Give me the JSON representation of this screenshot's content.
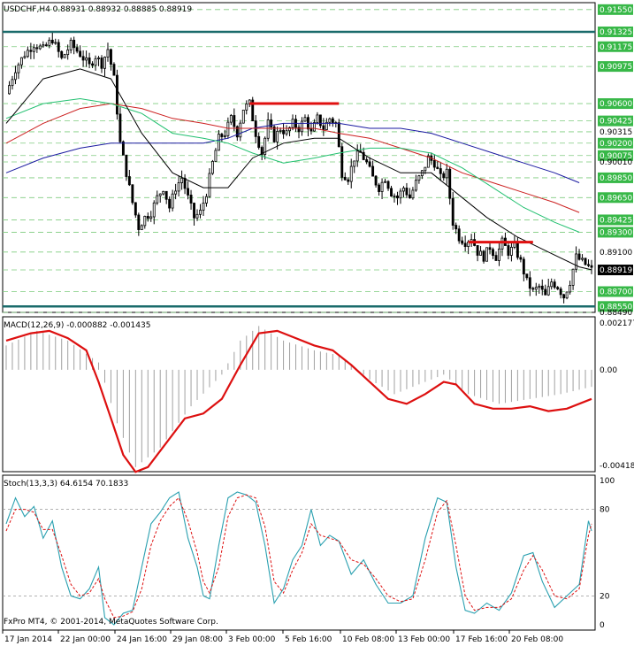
{
  "colors": {
    "background": "#ffffff",
    "frame": "#000000",
    "candle": "#000000",
    "grid": "#7fcc7f",
    "levels": "#1a6b6b",
    "resistance": "#e01010",
    "ma_fast": "#000000",
    "ma_mid": "#22c070",
    "ma_slow": "#cc2020",
    "ma_long": "#1a1aa0",
    "macd_line": "#dd1010",
    "macd_hist": "#a0a0a0",
    "stoch_main": "#2aa0b0",
    "stoch_signal": "#dd1010",
    "price_tag": "#38b848"
  },
  "main": {
    "header": "USDCHF,H4  0.88931 0.88932 0.88885 0.88919",
    "price_levels": [
      "0.91550",
      "0.91325",
      "0.91175",
      "0.90975",
      "0.90600",
      "0.90425",
      "0.90315",
      "0.90200",
      "0.90075",
      "0.90010",
      "0.89850",
      "0.89650",
      "0.89425",
      "0.89300",
      "0.89100",
      "0.88919",
      "0.88700",
      "0.88550",
      "0.88490"
    ],
    "highlighted_levels": [
      "0.91550",
      "0.91325",
      "0.91175",
      "0.90975",
      "0.90600",
      "0.90425",
      "0.90200",
      "0.90075",
      "0.89850",
      "0.89650",
      "0.89425",
      "0.89300",
      "0.88700",
      "0.88550"
    ],
    "current_price": "0.88919"
  },
  "macd": {
    "header": "MACD(12,26,9) -0.000882 -0.001435",
    "axis_labels": [
      "0.002177",
      "0.00",
      "-0.004188"
    ]
  },
  "stoch": {
    "header": "Stoch(13,3,3) 64.6154 70.1833",
    "axis_labels": [
      "100",
      "80",
      "20",
      "0"
    ]
  },
  "copyright": "FxPro MT4, © 2001-2014, MetaQuotes Software Corp.",
  "time_labels": [
    "17 Jan 2014",
    "22 Jan 00:00",
    "24 Jan 16:00",
    "29 Jan 08:00",
    "3 Feb 00:00",
    "5 Feb 16:00",
    "10 Feb 08:00",
    "13 Feb 00:00",
    "17 Feb 16:00",
    "20 Feb 08:00"
  ],
  "chart_data": {
    "type": "candlestick",
    "symbol": "USDCHF",
    "timeframe": "H4",
    "ylim": [
      0.8849,
      0.9162
    ],
    "price_path": [
      [
        0,
        0.907
      ],
      [
        3,
        0.9095
      ],
      [
        6,
        0.911
      ],
      [
        9,
        0.912
      ],
      [
        12,
        0.9115
      ],
      [
        15,
        0.9125
      ],
      [
        18,
        0.9105
      ],
      [
        21,
        0.912
      ],
      [
        24,
        0.911
      ],
      [
        27,
        0.9098
      ],
      [
        29,
        0.9108
      ],
      [
        31,
        0.91
      ],
      [
        33,
        0.9115
      ],
      [
        35,
        0.9085
      ],
      [
        37,
        0.902
      ],
      [
        39,
        0.899
      ],
      [
        41,
        0.896
      ],
      [
        43,
        0.8935
      ],
      [
        45,
        0.8945
      ],
      [
        47,
        0.895
      ],
      [
        49,
        0.8965
      ],
      [
        51,
        0.8975
      ],
      [
        53,
        0.8955
      ],
      [
        55,
        0.8975
      ],
      [
        57,
        0.8985
      ],
      [
        59,
        0.8965
      ],
      [
        61,
        0.8945
      ],
      [
        63,
        0.895
      ],
      [
        65,
        0.897
      ],
      [
        67,
        0.9
      ],
      [
        69,
        0.9025
      ],
      [
        71,
        0.903
      ],
      [
        73,
        0.9045
      ],
      [
        75,
        0.903
      ],
      [
        77,
        0.9055
      ],
      [
        79,
        0.906
      ],
      [
        81,
        0.903
      ],
      [
        83,
        0.901
      ],
      [
        85,
        0.904
      ],
      [
        87,
        0.9025
      ],
      [
        89,
        0.9035
      ],
      [
        91,
        0.903
      ],
      [
        93,
        0.904
      ],
      [
        95,
        0.9035
      ],
      [
        97,
        0.9045
      ],
      [
        99,
        0.903
      ],
      [
        101,
        0.9045
      ],
      [
        103,
        0.9035
      ],
      [
        105,
        0.9045
      ],
      [
        107,
        0.904
      ],
      [
        109,
        0.899
      ],
      [
        111,
        0.8985
      ],
      [
        113,
        0.9005
      ],
      [
        115,
        0.901
      ],
      [
        117,
        0.9
      ],
      [
        119,
        0.8985
      ],
      [
        121,
        0.8975
      ],
      [
        123,
        0.8985
      ],
      [
        125,
        0.897
      ],
      [
        127,
        0.8965
      ],
      [
        129,
        0.8975
      ],
      [
        131,
        0.8965
      ],
      [
        133,
        0.898
      ],
      [
        135,
        0.899
      ],
      [
        137,
        0.9005
      ],
      [
        139,
        0.9
      ],
      [
        141,
        0.8985
      ],
      [
        143,
        0.899
      ],
      [
        145,
        0.894
      ],
      [
        147,
        0.8925
      ],
      [
        149,
        0.892
      ],
      [
        151,
        0.8925
      ],
      [
        153,
        0.891
      ],
      [
        155,
        0.8905
      ],
      [
        157,
        0.8915
      ],
      [
        159,
        0.8905
      ],
      [
        161,
        0.892
      ],
      [
        163,
        0.891
      ],
      [
        165,
        0.8915
      ],
      [
        167,
        0.89
      ],
      [
        169,
        0.888
      ],
      [
        171,
        0.887
      ],
      [
        173,
        0.8875
      ],
      [
        175,
        0.8865
      ],
      [
        177,
        0.888
      ],
      [
        179,
        0.8875
      ],
      [
        181,
        0.8865
      ],
      [
        183,
        0.888
      ],
      [
        185,
        0.8905
      ],
      [
        187,
        0.89
      ],
      [
        189,
        0.8895
      ],
      [
        190,
        0.88919
      ]
    ],
    "ma_fast": [
      [
        0,
        0.904
      ],
      [
        12,
        0.9085
      ],
      [
        24,
        0.9095
      ],
      [
        34,
        0.9085
      ],
      [
        44,
        0.903
      ],
      [
        54,
        0.899
      ],
      [
        64,
        0.8975
      ],
      [
        72,
        0.8975
      ],
      [
        80,
        0.9005
      ],
      [
        90,
        0.902
      ],
      [
        100,
        0.9025
      ],
      [
        108,
        0.9025
      ],
      [
        118,
        0.9005
      ],
      [
        128,
        0.899
      ],
      [
        138,
        0.899
      ],
      [
        146,
        0.897
      ],
      [
        156,
        0.8945
      ],
      [
        166,
        0.8925
      ],
      [
        176,
        0.891
      ],
      [
        186,
        0.8895
      ],
      [
        190,
        0.8892
      ]
    ],
    "ma_mid": [
      [
        0,
        0.9045
      ],
      [
        12,
        0.906
      ],
      [
        24,
        0.9065
      ],
      [
        34,
        0.906
      ],
      [
        44,
        0.905
      ],
      [
        54,
        0.903
      ],
      [
        64,
        0.9025
      ],
      [
        72,
        0.902
      ],
      [
        80,
        0.901
      ],
      [
        90,
        0.9
      ],
      [
        100,
        0.9005
      ],
      [
        108,
        0.901
      ],
      [
        118,
        0.9015
      ],
      [
        128,
        0.9015
      ],
      [
        138,
        0.901
      ],
      [
        148,
        0.8995
      ],
      [
        158,
        0.8975
      ],
      [
        168,
        0.8955
      ],
      [
        178,
        0.894
      ],
      [
        186,
        0.893
      ]
    ],
    "ma_slow": [
      [
        0,
        0.902
      ],
      [
        12,
        0.904
      ],
      [
        24,
        0.9055
      ],
      [
        34,
        0.906
      ],
      [
        44,
        0.9055
      ],
      [
        54,
        0.9045
      ],
      [
        64,
        0.904
      ],
      [
        72,
        0.9035
      ],
      [
        80,
        0.9035
      ],
      [
        90,
        0.9035
      ],
      [
        100,
        0.9035
      ],
      [
        108,
        0.903
      ],
      [
        118,
        0.9025
      ],
      [
        128,
        0.9015
      ],
      [
        138,
        0.9005
      ],
      [
        148,
        0.899
      ],
      [
        158,
        0.898
      ],
      [
        168,
        0.897
      ],
      [
        178,
        0.896
      ],
      [
        186,
        0.895
      ]
    ],
    "ma_long": [
      [
        0,
        0.899
      ],
      [
        12,
        0.9005
      ],
      [
        24,
        0.9015
      ],
      [
        34,
        0.902
      ],
      [
        44,
        0.902
      ],
      [
        54,
        0.902
      ],
      [
        64,
        0.902
      ],
      [
        72,
        0.9025
      ],
      [
        80,
        0.9035
      ],
      [
        90,
        0.904
      ],
      [
        100,
        0.904
      ],
      [
        108,
        0.904
      ],
      [
        118,
        0.9035
      ],
      [
        128,
        0.9035
      ],
      [
        138,
        0.903
      ],
      [
        148,
        0.902
      ],
      [
        158,
        0.901
      ],
      [
        168,
        0.9
      ],
      [
        178,
        0.899
      ],
      [
        186,
        0.898
      ]
    ],
    "resistance_lines": [
      {
        "from": 79,
        "to": 108,
        "price": 0.906
      },
      {
        "from": 150,
        "to": 171,
        "price": 0.892
      }
    ],
    "macd": {
      "ylim": [
        -0.004188,
        0.002177
      ],
      "line": [
        [
          0,
          0.0012
        ],
        [
          8,
          0.0015
        ],
        [
          14,
          0.0016
        ],
        [
          20,
          0.0013
        ],
        [
          26,
          0.0008
        ],
        [
          30,
          -0.0005
        ],
        [
          34,
          -0.002
        ],
        [
          38,
          -0.0035
        ],
        [
          42,
          -0.0042
        ],
        [
          46,
          -0.004
        ],
        [
          52,
          -0.003
        ],
        [
          58,
          -0.002
        ],
        [
          64,
          -0.0018
        ],
        [
          70,
          -0.0012
        ],
        [
          76,
          0.0002
        ],
        [
          82,
          0.0015
        ],
        [
          88,
          0.0016
        ],
        [
          94,
          0.0013
        ],
        [
          100,
          0.001
        ],
        [
          106,
          0.0008
        ],
        [
          112,
          0.0002
        ],
        [
          118,
          -0.0005
        ],
        [
          124,
          -0.0012
        ],
        [
          130,
          -0.0014
        ],
        [
          136,
          -0.001
        ],
        [
          142,
          -0.0005
        ],
        [
          146,
          -0.0006
        ],
        [
          152,
          -0.0014
        ],
        [
          158,
          -0.0016
        ],
        [
          164,
          -0.0016
        ],
        [
          170,
          -0.0015
        ],
        [
          176,
          -0.0017
        ],
        [
          182,
          -0.0016
        ],
        [
          190,
          -0.0012
        ]
      ],
      "hist": [
        [
          0,
          0.001
        ],
        [
          10,
          0.0016
        ],
        [
          20,
          0.0012
        ],
        [
          30,
          0.0003
        ],
        [
          36,
          -0.0022
        ],
        [
          42,
          -0.004
        ],
        [
          50,
          -0.0032
        ],
        [
          60,
          -0.0015
        ],
        [
          70,
          -0.0002
        ],
        [
          76,
          0.0012
        ],
        [
          82,
          0.0018
        ],
        [
          90,
          0.0012
        ],
        [
          100,
          0.0008
        ],
        [
          108,
          0.0006
        ],
        [
          118,
          -0.0004
        ],
        [
          126,
          -0.001
        ],
        [
          134,
          -0.0006
        ],
        [
          142,
          -0.0002
        ],
        [
          150,
          -0.001
        ],
        [
          160,
          -0.0014
        ],
        [
          170,
          -0.0012
        ],
        [
          180,
          -0.001
        ],
        [
          190,
          -0.0007
        ]
      ]
    },
    "stochastic": {
      "ylim": [
        0,
        100
      ],
      "main": [
        [
          0,
          70
        ],
        [
          3,
          88
        ],
        [
          6,
          75
        ],
        [
          9,
          82
        ],
        [
          12,
          60
        ],
        [
          15,
          72
        ],
        [
          18,
          40
        ],
        [
          21,
          20
        ],
        [
          24,
          18
        ],
        [
          27,
          25
        ],
        [
          30,
          40
        ],
        [
          32,
          5
        ],
        [
          35,
          0
        ],
        [
          38,
          8
        ],
        [
          41,
          10
        ],
        [
          44,
          40
        ],
        [
          47,
          70
        ],
        [
          50,
          78
        ],
        [
          53,
          88
        ],
        [
          56,
          92
        ],
        [
          59,
          60
        ],
        [
          62,
          40
        ],
        [
          64,
          20
        ],
        [
          66,
          18
        ],
        [
          69,
          55
        ],
        [
          72,
          88
        ],
        [
          75,
          92
        ],
        [
          78,
          90
        ],
        [
          81,
          85
        ],
        [
          84,
          55
        ],
        [
          87,
          15
        ],
        [
          90,
          25
        ],
        [
          93,
          45
        ],
        [
          96,
          55
        ],
        [
          99,
          80
        ],
        [
          102,
          55
        ],
        [
          105,
          62
        ],
        [
          108,
          58
        ],
        [
          112,
          35
        ],
        [
          116,
          45
        ],
        [
          120,
          28
        ],
        [
          124,
          15
        ],
        [
          128,
          15
        ],
        [
          132,
          20
        ],
        [
          136,
          60
        ],
        [
          140,
          88
        ],
        [
          143,
          85
        ],
        [
          146,
          40
        ],
        [
          149,
          10
        ],
        [
          152,
          8
        ],
        [
          156,
          15
        ],
        [
          160,
          10
        ],
        [
          164,
          22
        ],
        [
          168,
          48
        ],
        [
          171,
          50
        ],
        [
          174,
          30
        ],
        [
          178,
          12
        ],
        [
          182,
          20
        ],
        [
          186,
          28
        ],
        [
          189,
          72
        ],
        [
          190,
          65
        ]
      ],
      "signal": [
        [
          0,
          65
        ],
        [
          3,
          80
        ],
        [
          6,
          80
        ],
        [
          9,
          78
        ],
        [
          12,
          66
        ],
        [
          15,
          66
        ],
        [
          18,
          48
        ],
        [
          21,
          28
        ],
        [
          24,
          20
        ],
        [
          27,
          22
        ],
        [
          30,
          32
        ],
        [
          32,
          18
        ],
        [
          35,
          5
        ],
        [
          38,
          6
        ],
        [
          41,
          9
        ],
        [
          44,
          25
        ],
        [
          47,
          55
        ],
        [
          50,
          72
        ],
        [
          53,
          82
        ],
        [
          56,
          88
        ],
        [
          59,
          72
        ],
        [
          62,
          50
        ],
        [
          64,
          30
        ],
        [
          66,
          22
        ],
        [
          69,
          40
        ],
        [
          72,
          75
        ],
        [
          75,
          88
        ],
        [
          78,
          90
        ],
        [
          81,
          88
        ],
        [
          84,
          68
        ],
        [
          87,
          30
        ],
        [
          90,
          22
        ],
        [
          93,
          38
        ],
        [
          96,
          50
        ],
        [
          99,
          70
        ],
        [
          102,
          62
        ],
        [
          105,
          60
        ],
        [
          108,
          58
        ],
        [
          112,
          45
        ],
        [
          116,
          42
        ],
        [
          120,
          32
        ],
        [
          124,
          20
        ],
        [
          128,
          16
        ],
        [
          132,
          18
        ],
        [
          136,
          45
        ],
        [
          140,
          78
        ],
        [
          143,
          86
        ],
        [
          146,
          55
        ],
        [
          149,
          20
        ],
        [
          152,
          10
        ],
        [
          156,
          12
        ],
        [
          160,
          12
        ],
        [
          164,
          18
        ],
        [
          168,
          38
        ],
        [
          171,
          48
        ],
        [
          174,
          38
        ],
        [
          178,
          20
        ],
        [
          182,
          18
        ],
        [
          186,
          25
        ],
        [
          189,
          62
        ],
        [
          190,
          70
        ]
      ]
    }
  }
}
